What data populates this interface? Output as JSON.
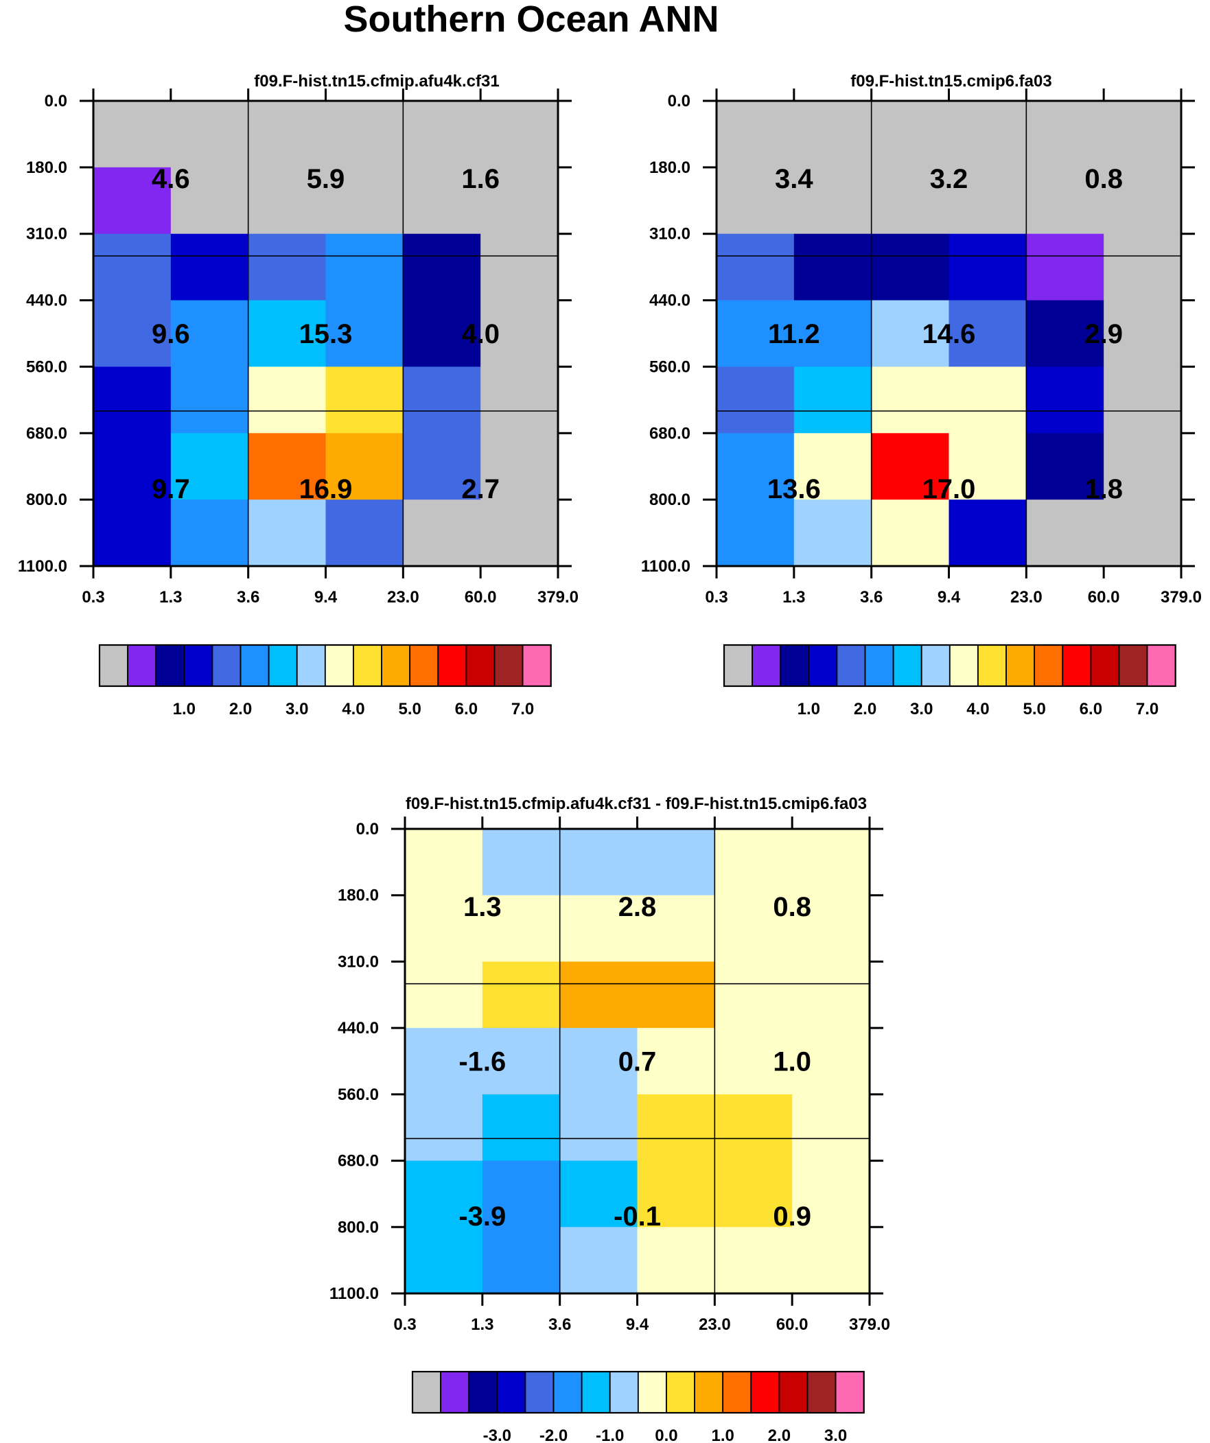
{
  "figure": {
    "title": "Southern Ocean ANN"
  },
  "colors": {
    "abs": [
      "#c3c3c3",
      "#8127ef",
      "#000096",
      "#0000cd",
      "#4169e1",
      "#1e90ff",
      "#00bfff",
      "#a0d2ff",
      "#ffffc8",
      "#ffe132",
      "#ffaa00",
      "#ff6e00",
      "#ff0000",
      "#c80000",
      "#a02323",
      "#ff69b4"
    ],
    "diff": [
      "#c3c3c3",
      "#8127ef",
      "#000096",
      "#0000cd",
      "#4169e1",
      "#1e90ff",
      "#00bfff",
      "#a0d2ff",
      "#ffffc8",
      "#ffe132",
      "#ffaa00",
      "#ff6e00",
      "#ff0000",
      "#c80000",
      "#a02323",
      "#ff69b4"
    ]
  },
  "chart_data": [
    {
      "type": "heatmap",
      "title": "f09.F-hist.tn15.cfmip.afu4k.cf31",
      "xticks": [
        "0.3",
        "1.3",
        "3.6",
        "9.4",
        "23.0",
        "60.0",
        "379.0"
      ],
      "yticks": [
        "0.0",
        "180.0",
        "310.0",
        "440.0",
        "560.0",
        "680.0",
        "800.0",
        "1100.0"
      ],
      "cells": [
        [
          0,
          0,
          0,
          0,
          0,
          0
        ],
        [
          1,
          0,
          0,
          0,
          0,
          0
        ],
        [
          4,
          3,
          4,
          5,
          2,
          0
        ],
        [
          4,
          5,
          6,
          5,
          2,
          0
        ],
        [
          3,
          5,
          8,
          9,
          4,
          0
        ],
        [
          3,
          6,
          11,
          10,
          4,
          0
        ],
        [
          3,
          5,
          7,
          4,
          0,
          0
        ]
      ],
      "labels": [
        [
          "4.6",
          "5.9",
          "1.6"
        ],
        [
          "9.6",
          "15.3",
          "4.0"
        ],
        [
          "9.7",
          "16.9",
          "2.7"
        ]
      ],
      "colorbar": {
        "palette": "abs",
        "labels": [
          "1.0",
          "2.0",
          "3.0",
          "4.0",
          "5.0",
          "6.0",
          "7.0"
        ],
        "label_at_boundary": 2
      }
    },
    {
      "type": "heatmap",
      "title": "f09.F-hist.tn15.cmip6.fa03",
      "xticks": [
        "0.3",
        "1.3",
        "3.6",
        "9.4",
        "23.0",
        "60.0",
        "379.0"
      ],
      "yticks": [
        "0.0",
        "180.0",
        "310.0",
        "440.0",
        "560.0",
        "680.0",
        "800.0",
        "1100.0"
      ],
      "cells": [
        [
          0,
          0,
          0,
          0,
          0,
          0
        ],
        [
          0,
          0,
          0,
          0,
          0,
          0
        ],
        [
          4,
          2,
          2,
          3,
          1,
          0
        ],
        [
          5,
          5,
          7,
          4,
          2,
          0
        ],
        [
          4,
          6,
          8,
          8,
          3,
          0
        ],
        [
          5,
          8,
          12,
          8,
          2,
          0
        ],
        [
          5,
          7,
          8,
          3,
          0,
          0
        ]
      ],
      "labels": [
        [
          "3.4",
          "3.2",
          "0.8"
        ],
        [
          "11.2",
          "14.6",
          "2.9"
        ],
        [
          "13.6",
          "17.0",
          "1.8"
        ]
      ],
      "colorbar": {
        "palette": "abs",
        "labels": [
          "1.0",
          "2.0",
          "3.0",
          "4.0",
          "5.0",
          "6.0",
          "7.0"
        ],
        "label_at_boundary": 2
      }
    },
    {
      "type": "heatmap",
      "title": "f09.F-hist.tn15.cfmip.afu4k.cf31 - f09.F-hist.tn15.cmip6.fa03",
      "xticks": [
        "0.3",
        "1.3",
        "3.6",
        "9.4",
        "23.0",
        "60.0",
        "379.0"
      ],
      "yticks": [
        "0.0",
        "180.0",
        "310.0",
        "440.0",
        "560.0",
        "680.0",
        "800.0",
        "1100.0"
      ],
      "cells": [
        [
          8,
          7,
          7,
          7,
          8,
          8
        ],
        [
          8,
          8,
          8,
          8,
          8,
          8
        ],
        [
          8,
          9,
          10,
          10,
          8,
          8
        ],
        [
          7,
          7,
          7,
          8,
          8,
          8
        ],
        [
          7,
          6,
          7,
          9,
          9,
          8
        ],
        [
          6,
          5,
          6,
          9,
          9,
          8
        ],
        [
          6,
          5,
          7,
          8,
          8,
          8
        ]
      ],
      "labels": [
        [
          "1.3",
          "2.8",
          "0.8"
        ],
        [
          "-1.6",
          "0.7",
          "1.0"
        ],
        [
          "-3.9",
          "-0.1",
          "0.9"
        ]
      ],
      "colorbar": {
        "palette": "diff",
        "labels": [
          "-3.0",
          "-2.0",
          "-1.0",
          "0.0",
          "1.0",
          "2.0",
          "3.0"
        ],
        "label_at_boundary": 2
      }
    }
  ]
}
